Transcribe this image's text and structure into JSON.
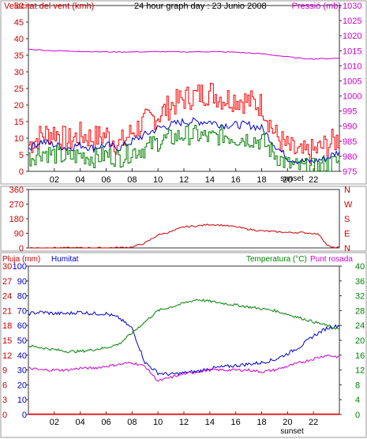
{
  "chart_data": [
    {
      "type": "line",
      "title": "24 hour graph day : 23 Junio 2008",
      "ylabel": "Velocitat del vent (kmh)",
      "y2label": "Pressió (mb)",
      "ylim": [
        0,
        50
      ],
      "y2lim": [
        975,
        1030
      ],
      "yticks": [
        "0",
        "5",
        "10",
        "15",
        "20",
        "25",
        "30",
        "35",
        "40",
        "45",
        "50"
      ],
      "y2ticks": [
        "975",
        "980",
        "985",
        "990",
        "995",
        "1000",
        "1005",
        "1010",
        "1015",
        "1020",
        "1025",
        "1030"
      ],
      "xticks": [
        "02",
        "04",
        "06",
        "08",
        "10",
        "12",
        "14",
        "16",
        "18",
        "20",
        "22"
      ],
      "sunset_label": "sunset",
      "colors": {
        "gust": "#ff0000",
        "avg_wind": "#0000cc",
        "wind_green": "#008000",
        "pressure": "#cc00cc",
        "axis": "#333333",
        "left_text": "#cc0000",
        "right_text": "#cc00cc"
      },
      "series": [
        {
          "key": "gust",
          "x": [
            0,
            1,
            2,
            3,
            4,
            5,
            6,
            7,
            8,
            9,
            10,
            11,
            12,
            13,
            14,
            15,
            16,
            17,
            18,
            19,
            20,
            21,
            22,
            23,
            24
          ],
          "values": [
            8,
            11,
            12,
            9,
            11,
            10,
            11,
            8,
            12,
            15,
            17,
            20,
            22,
            23,
            24,
            22,
            22,
            21,
            20,
            11,
            7,
            5,
            6,
            8,
            10
          ]
        },
        {
          "key": "avg_wind",
          "x": [
            0,
            1,
            2,
            3,
            4,
            5,
            6,
            7,
            8,
            9,
            10,
            11,
            12,
            13,
            14,
            15,
            16,
            17,
            18,
            19,
            20,
            21,
            22,
            23,
            24
          ],
          "values": [
            7,
            9,
            8,
            7,
            8,
            7,
            8,
            7,
            9,
            11,
            13,
            14,
            15,
            15,
            15,
            14,
            14,
            14,
            13,
            8,
            4,
            3,
            3,
            4,
            6
          ]
        },
        {
          "key": "wind_green",
          "x": [
            0,
            1,
            2,
            3,
            4,
            5,
            6,
            7,
            8,
            9,
            10,
            11,
            12,
            13,
            14,
            15,
            16,
            17,
            18,
            19,
            20,
            21,
            22,
            23,
            24
          ],
          "values": [
            4,
            6,
            5,
            4,
            5,
            4,
            5,
            4,
            6,
            7,
            9,
            10,
            11,
            11,
            10,
            11,
            10,
            10,
            9,
            5,
            2,
            1,
            1,
            2,
            3
          ]
        },
        {
          "key": "pressure",
          "x": [
            0,
            2,
            4,
            6,
            8,
            10,
            12,
            14,
            16,
            18,
            19,
            20,
            21,
            22,
            23,
            24
          ],
          "values": [
            1015.5,
            1015,
            1014.8,
            1014.6,
            1014.6,
            1014.7,
            1014.6,
            1014.7,
            1014.5,
            1014,
            1013.5,
            1013,
            1012.5,
            1012.3,
            1012.4,
            1012.5
          ]
        }
      ]
    },
    {
      "type": "line",
      "ylabel_letters": [
        "N",
        "W",
        "S",
        "E",
        "N"
      ],
      "ylim": [
        0,
        360
      ],
      "yticks": [
        "0",
        "90",
        "180",
        "270",
        "360"
      ],
      "colors": {
        "direction": "#cc0000"
      },
      "series": [
        {
          "key": "direction",
          "x": [
            0,
            6,
            7,
            8,
            9,
            10,
            11,
            12,
            13,
            14,
            15,
            16,
            17,
            18,
            19,
            20,
            21,
            22,
            22.5,
            23,
            23.4
          ],
          "values": [
            0,
            0,
            2,
            5,
            30,
            80,
            100,
            130,
            135,
            145,
            140,
            130,
            115,
            105,
            100,
            95,
            95,
            90,
            80,
            20,
            2
          ]
        }
      ]
    },
    {
      "type": "line",
      "ylabel": "Pluja (mm)",
      "ylabel2": "Humitat",
      "y2label": "Temperatura (°C)",
      "y2label2": "Punt rosada",
      "ylim": [
        0,
        100
      ],
      "yticks": [
        "0",
        "10",
        "20",
        "30",
        "40",
        "50",
        "60",
        "70",
        "80",
        "90",
        "100"
      ],
      "rain_ylim": [
        0,
        3
      ],
      "rain_ticks": [
        "0",
        "3",
        "6",
        "9",
        "12",
        "15",
        "18",
        "21",
        "24",
        "27",
        "30"
      ],
      "y2lim": [
        0,
        40
      ],
      "y2ticks": [
        "0",
        "4",
        "8",
        "12",
        "16",
        "20",
        "24",
        "28",
        "32",
        "36",
        "40"
      ],
      "xticks": [
        "02",
        "04",
        "06",
        "08",
        "10",
        "12",
        "14",
        "16",
        "18",
        "20",
        "22"
      ],
      "sunset_label": "sunset",
      "colors": {
        "humidity": "#0000cc",
        "temperature": "#008000",
        "dewpoint": "#cc00cc",
        "rain": "#ff0000",
        "left_text": "#cc0000",
        "hum_text": "#0000cc",
        "temp_text": "#008000",
        "dew_text": "#cc00cc"
      },
      "series": [
        {
          "key": "humidity",
          "x": [
            0,
            1,
            2,
            3,
            4,
            5,
            6,
            7,
            8,
            9,
            10,
            11,
            12,
            13,
            14,
            15,
            16,
            17,
            18,
            19,
            20,
            21,
            22,
            23,
            24
          ],
          "values": [
            68,
            69,
            68,
            68,
            69,
            68,
            68,
            65,
            58,
            35,
            28,
            27,
            28,
            29,
            31,
            32,
            33,
            34,
            35,
            37,
            41,
            46,
            53,
            58,
            60
          ]
        },
        {
          "key": "temperature",
          "x": [
            0,
            1,
            2,
            3,
            4,
            5,
            6,
            7,
            8,
            9,
            10,
            11,
            12,
            13,
            14,
            15,
            16,
            17,
            18,
            19,
            20,
            21,
            22,
            23,
            24
          ],
          "values": [
            18.5,
            18,
            17.5,
            17,
            17,
            17.5,
            18,
            19,
            22,
            25,
            28,
            29,
            30,
            31,
            30.5,
            30,
            29.5,
            29,
            28.5,
            28,
            27,
            26,
            25,
            24,
            23
          ]
        },
        {
          "key": "dewpoint",
          "x": [
            0,
            1,
            2,
            3,
            4,
            5,
            6,
            7,
            8,
            9,
            10,
            11,
            12,
            13,
            14,
            15,
            16,
            17,
            18,
            19,
            20,
            21,
            22,
            23,
            24
          ],
          "values": [
            12.5,
            12,
            12,
            12,
            12.5,
            12.5,
            13,
            13.5,
            14,
            13,
            9,
            10,
            11,
            11.5,
            12,
            12,
            12,
            12,
            11.5,
            12,
            13,
            14,
            15,
            16,
            15.5
          ]
        },
        {
          "key": "rain",
          "x": [
            0,
            24
          ],
          "values": [
            0,
            0
          ]
        }
      ]
    }
  ]
}
